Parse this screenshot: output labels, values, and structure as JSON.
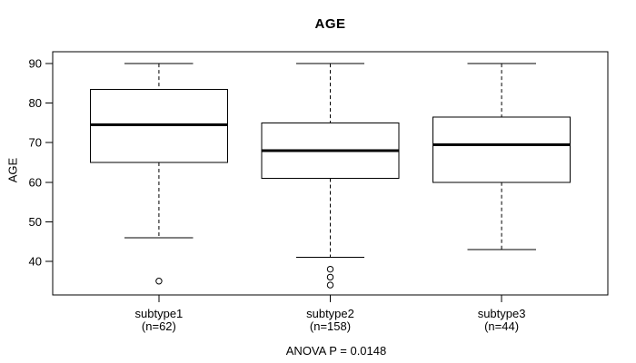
{
  "chart_data": {
    "type": "boxplot",
    "title": "AGE",
    "ylabel": "AGE",
    "footer": "ANOVA P = 0.0148",
    "y_ticks": [
      40,
      50,
      60,
      70,
      80,
      90
    ],
    "ylim": [
      31.5,
      93
    ],
    "xlim": [
      0.38,
      3.62
    ],
    "box_width": 0.8,
    "cap_width": 0.4,
    "grid": false,
    "groups": [
      {
        "label": "subtype1",
        "n_label": "(n=62)",
        "x": 1,
        "whisker_low": 46,
        "q1": 65,
        "median": 74.5,
        "q3": 83.5,
        "whisker_high": 90,
        "outliers": [
          35
        ]
      },
      {
        "label": "subtype2",
        "n_label": "(n=158)",
        "x": 2,
        "whisker_low": 41,
        "q1": 61,
        "median": 68,
        "q3": 75,
        "whisker_high": 90,
        "outliers": [
          38,
          36,
          34
        ]
      },
      {
        "label": "subtype3",
        "n_label": "(n=44)",
        "x": 3,
        "whisker_low": 43,
        "q1": 60,
        "median": 69.5,
        "q3": 76.5,
        "whisker_high": 90,
        "outliers": []
      }
    ],
    "colors": {
      "line": "#000000",
      "box_fill": "#ffffff",
      "background": "#ffffff"
    }
  }
}
